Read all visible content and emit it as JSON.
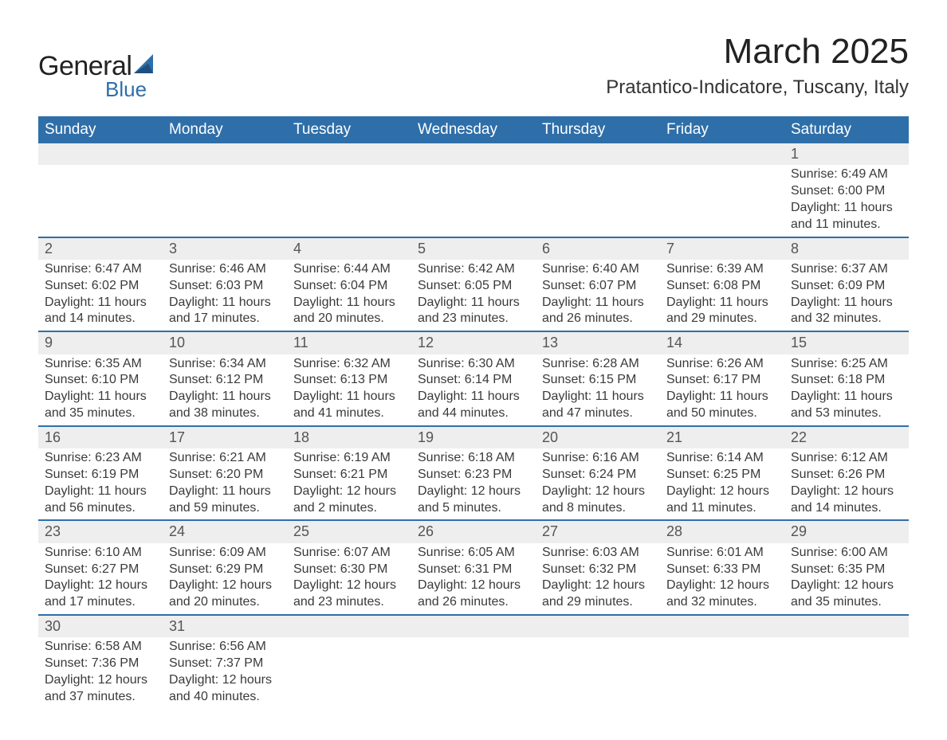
{
  "logo": {
    "text1": "General",
    "text2": "Blue",
    "sail_color": "#2f6fa9"
  },
  "title": "March 2025",
  "location": "Pratantico-Indicatore, Tuscany, Italy",
  "colors": {
    "header_bg": "#2f6fa9",
    "header_fg": "#ffffff",
    "daynum_bg": "#eeeeee",
    "border": "#2f6fa9",
    "text": "#3a3a3a"
  },
  "weekdays": [
    "Sunday",
    "Monday",
    "Tuesday",
    "Wednesday",
    "Thursday",
    "Friday",
    "Saturday"
  ],
  "weeks": [
    [
      null,
      null,
      null,
      null,
      null,
      null,
      {
        "n": "1",
        "sr": "Sunrise: 6:49 AM",
        "ss": "Sunset: 6:00 PM",
        "d1": "Daylight: 11 hours",
        "d2": "and 11 minutes."
      }
    ],
    [
      {
        "n": "2",
        "sr": "Sunrise: 6:47 AM",
        "ss": "Sunset: 6:02 PM",
        "d1": "Daylight: 11 hours",
        "d2": "and 14 minutes."
      },
      {
        "n": "3",
        "sr": "Sunrise: 6:46 AM",
        "ss": "Sunset: 6:03 PM",
        "d1": "Daylight: 11 hours",
        "d2": "and 17 minutes."
      },
      {
        "n": "4",
        "sr": "Sunrise: 6:44 AM",
        "ss": "Sunset: 6:04 PM",
        "d1": "Daylight: 11 hours",
        "d2": "and 20 minutes."
      },
      {
        "n": "5",
        "sr": "Sunrise: 6:42 AM",
        "ss": "Sunset: 6:05 PM",
        "d1": "Daylight: 11 hours",
        "d2": "and 23 minutes."
      },
      {
        "n": "6",
        "sr": "Sunrise: 6:40 AM",
        "ss": "Sunset: 6:07 PM",
        "d1": "Daylight: 11 hours",
        "d2": "and 26 minutes."
      },
      {
        "n": "7",
        "sr": "Sunrise: 6:39 AM",
        "ss": "Sunset: 6:08 PM",
        "d1": "Daylight: 11 hours",
        "d2": "and 29 minutes."
      },
      {
        "n": "8",
        "sr": "Sunrise: 6:37 AM",
        "ss": "Sunset: 6:09 PM",
        "d1": "Daylight: 11 hours",
        "d2": "and 32 minutes."
      }
    ],
    [
      {
        "n": "9",
        "sr": "Sunrise: 6:35 AM",
        "ss": "Sunset: 6:10 PM",
        "d1": "Daylight: 11 hours",
        "d2": "and 35 minutes."
      },
      {
        "n": "10",
        "sr": "Sunrise: 6:34 AM",
        "ss": "Sunset: 6:12 PM",
        "d1": "Daylight: 11 hours",
        "d2": "and 38 minutes."
      },
      {
        "n": "11",
        "sr": "Sunrise: 6:32 AM",
        "ss": "Sunset: 6:13 PM",
        "d1": "Daylight: 11 hours",
        "d2": "and 41 minutes."
      },
      {
        "n": "12",
        "sr": "Sunrise: 6:30 AM",
        "ss": "Sunset: 6:14 PM",
        "d1": "Daylight: 11 hours",
        "d2": "and 44 minutes."
      },
      {
        "n": "13",
        "sr": "Sunrise: 6:28 AM",
        "ss": "Sunset: 6:15 PM",
        "d1": "Daylight: 11 hours",
        "d2": "and 47 minutes."
      },
      {
        "n": "14",
        "sr": "Sunrise: 6:26 AM",
        "ss": "Sunset: 6:17 PM",
        "d1": "Daylight: 11 hours",
        "d2": "and 50 minutes."
      },
      {
        "n": "15",
        "sr": "Sunrise: 6:25 AM",
        "ss": "Sunset: 6:18 PM",
        "d1": "Daylight: 11 hours",
        "d2": "and 53 minutes."
      }
    ],
    [
      {
        "n": "16",
        "sr": "Sunrise: 6:23 AM",
        "ss": "Sunset: 6:19 PM",
        "d1": "Daylight: 11 hours",
        "d2": "and 56 minutes."
      },
      {
        "n": "17",
        "sr": "Sunrise: 6:21 AM",
        "ss": "Sunset: 6:20 PM",
        "d1": "Daylight: 11 hours",
        "d2": "and 59 minutes."
      },
      {
        "n": "18",
        "sr": "Sunrise: 6:19 AM",
        "ss": "Sunset: 6:21 PM",
        "d1": "Daylight: 12 hours",
        "d2": "and 2 minutes."
      },
      {
        "n": "19",
        "sr": "Sunrise: 6:18 AM",
        "ss": "Sunset: 6:23 PM",
        "d1": "Daylight: 12 hours",
        "d2": "and 5 minutes."
      },
      {
        "n": "20",
        "sr": "Sunrise: 6:16 AM",
        "ss": "Sunset: 6:24 PM",
        "d1": "Daylight: 12 hours",
        "d2": "and 8 minutes."
      },
      {
        "n": "21",
        "sr": "Sunrise: 6:14 AM",
        "ss": "Sunset: 6:25 PM",
        "d1": "Daylight: 12 hours",
        "d2": "and 11 minutes."
      },
      {
        "n": "22",
        "sr": "Sunrise: 6:12 AM",
        "ss": "Sunset: 6:26 PM",
        "d1": "Daylight: 12 hours",
        "d2": "and 14 minutes."
      }
    ],
    [
      {
        "n": "23",
        "sr": "Sunrise: 6:10 AM",
        "ss": "Sunset: 6:27 PM",
        "d1": "Daylight: 12 hours",
        "d2": "and 17 minutes."
      },
      {
        "n": "24",
        "sr": "Sunrise: 6:09 AM",
        "ss": "Sunset: 6:29 PM",
        "d1": "Daylight: 12 hours",
        "d2": "and 20 minutes."
      },
      {
        "n": "25",
        "sr": "Sunrise: 6:07 AM",
        "ss": "Sunset: 6:30 PM",
        "d1": "Daylight: 12 hours",
        "d2": "and 23 minutes."
      },
      {
        "n": "26",
        "sr": "Sunrise: 6:05 AM",
        "ss": "Sunset: 6:31 PM",
        "d1": "Daylight: 12 hours",
        "d2": "and 26 minutes."
      },
      {
        "n": "27",
        "sr": "Sunrise: 6:03 AM",
        "ss": "Sunset: 6:32 PM",
        "d1": "Daylight: 12 hours",
        "d2": "and 29 minutes."
      },
      {
        "n": "28",
        "sr": "Sunrise: 6:01 AM",
        "ss": "Sunset: 6:33 PM",
        "d1": "Daylight: 12 hours",
        "d2": "and 32 minutes."
      },
      {
        "n": "29",
        "sr": "Sunrise: 6:00 AM",
        "ss": "Sunset: 6:35 PM",
        "d1": "Daylight: 12 hours",
        "d2": "and 35 minutes."
      }
    ],
    [
      {
        "n": "30",
        "sr": "Sunrise: 6:58 AM",
        "ss": "Sunset: 7:36 PM",
        "d1": "Daylight: 12 hours",
        "d2": "and 37 minutes."
      },
      {
        "n": "31",
        "sr": "Sunrise: 6:56 AM",
        "ss": "Sunset: 7:37 PM",
        "d1": "Daylight: 12 hours",
        "d2": "and 40 minutes."
      },
      null,
      null,
      null,
      null,
      null
    ]
  ]
}
